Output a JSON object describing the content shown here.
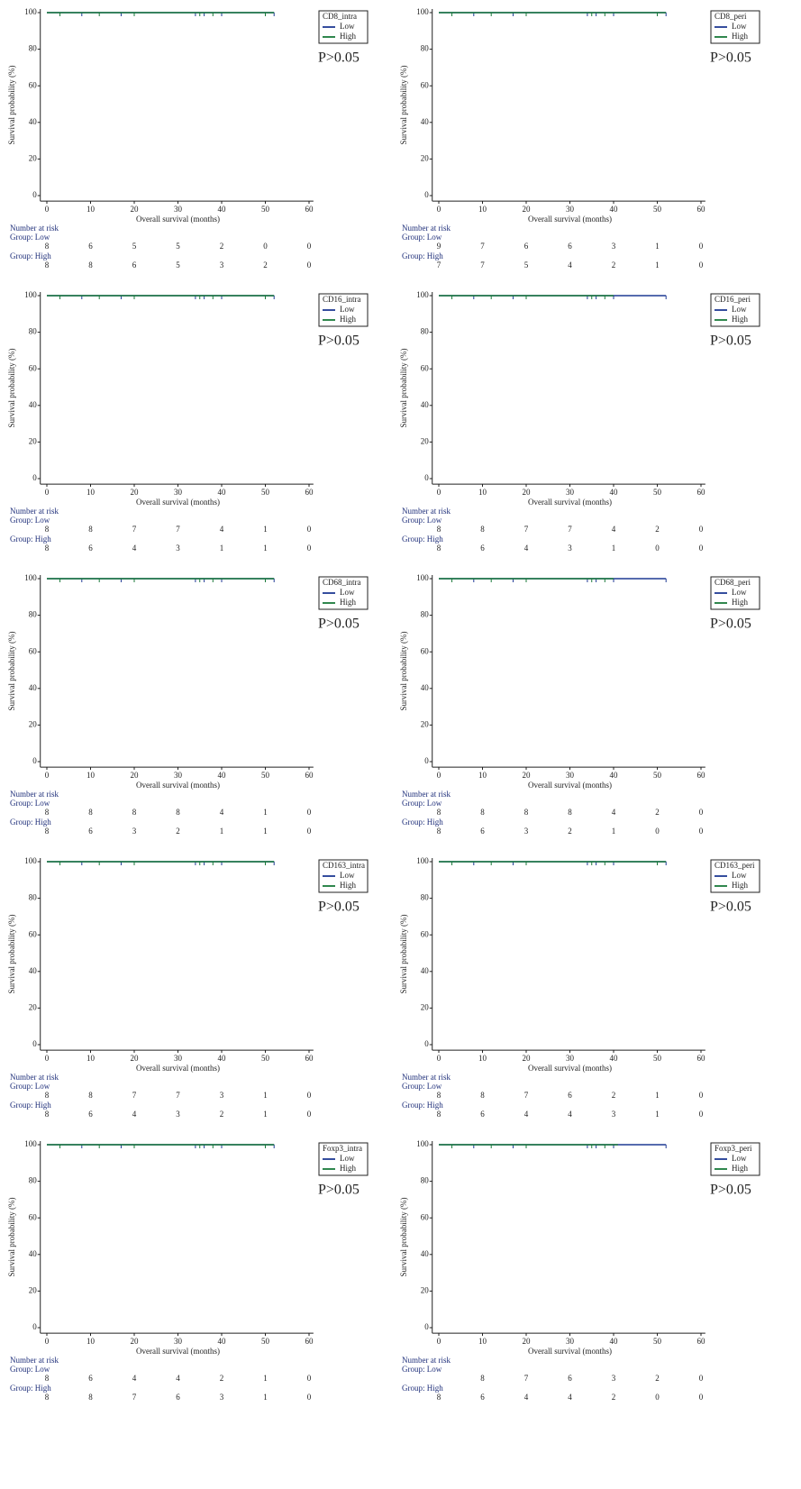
{
  "chart_data": [
    {
      "type": "km",
      "title": "CD8_intra",
      "p_text": "P>0.05",
      "x_label": "Overall survival (months)",
      "y_label": "Survival probability (%)",
      "xlim": [
        -1.5,
        61
      ],
      "ylim": [
        -3,
        102
      ],
      "xticks": [
        0,
        10,
        20,
        30,
        40,
        50,
        60
      ],
      "yticks": [
        0,
        20,
        40,
        60,
        80,
        100
      ],
      "series": [
        {
          "name": "Low",
          "color": "#1f3a93",
          "x": [
            0,
            52
          ],
          "values": [
            100,
            100
          ],
          "censored": [
            8,
            17,
            34,
            36,
            40,
            52
          ]
        },
        {
          "name": "High",
          "color": "#1a7a3a",
          "x": [
            0,
            52
          ],
          "values": [
            100,
            100
          ],
          "censored": [
            3,
            12,
            20,
            35,
            38,
            50
          ]
        }
      ],
      "risk_table": {
        "title": "Number at risk",
        "groups": [
          {
            "label": "Group: Low",
            "counts": [
              8,
              6,
              5,
              5,
              2,
              0,
              0
            ]
          },
          {
            "label": "Group: High",
            "counts": [
              8,
              8,
              6,
              5,
              3,
              2,
              0
            ]
          }
        ]
      }
    },
    {
      "type": "km",
      "title": "CD8_peri",
      "p_text": "P>0.05",
      "x_label": "Overall survival (months)",
      "y_label": "Survival probability (%)",
      "xlim": [
        -1.5,
        61
      ],
      "ylim": [
        -3,
        102
      ],
      "xticks": [
        0,
        10,
        20,
        30,
        40,
        50,
        60
      ],
      "yticks": [
        0,
        20,
        40,
        60,
        80,
        100
      ],
      "series": [
        {
          "name": "Low",
          "color": "#1f3a93",
          "x": [
            0,
            52
          ],
          "values": [
            100,
            100
          ],
          "censored": [
            8,
            17,
            34,
            36,
            40,
            52
          ]
        },
        {
          "name": "High",
          "color": "#1a7a3a",
          "x": [
            0,
            52
          ],
          "values": [
            100,
            100
          ],
          "censored": [
            3,
            12,
            20,
            35,
            38,
            50
          ]
        }
      ],
      "risk_table": {
        "title": "Number at risk",
        "groups": [
          {
            "label": "Group: Low",
            "counts": [
              9,
              7,
              6,
              6,
              3,
              1,
              0
            ]
          },
          {
            "label": "Group: High",
            "counts": [
              7,
              7,
              5,
              4,
              2,
              1,
              0
            ]
          }
        ]
      }
    },
    {
      "type": "km",
      "title": "CD16_intra",
      "p_text": "P>0.05",
      "x_label": "Overall survival (months)",
      "y_label": "Survival probability (%)",
      "xlim": [
        -1.5,
        61
      ],
      "ylim": [
        -3,
        102
      ],
      "xticks": [
        0,
        10,
        20,
        30,
        40,
        50,
        60
      ],
      "yticks": [
        0,
        20,
        40,
        60,
        80,
        100
      ],
      "series": [
        {
          "name": "Low",
          "color": "#1f3a93",
          "x": [
            0,
            52
          ],
          "values": [
            100,
            100
          ],
          "censored": [
            8,
            17,
            34,
            36,
            40,
            52
          ]
        },
        {
          "name": "High",
          "color": "#1a7a3a",
          "x": [
            0,
            52
          ],
          "values": [
            100,
            100
          ],
          "censored": [
            3,
            12,
            20,
            35,
            38,
            50
          ]
        }
      ],
      "risk_table": {
        "title": "Number at risk",
        "groups": [
          {
            "label": "Group: Low",
            "counts": [
              8,
              8,
              7,
              7,
              4,
              1,
              0
            ]
          },
          {
            "label": "Group: High",
            "counts": [
              8,
              6,
              4,
              3,
              1,
              1,
              0
            ]
          }
        ]
      }
    },
    {
      "type": "km",
      "title": "CD16_peri",
      "p_text": "P>0.05",
      "x_label": "Overall survival (months)",
      "y_label": "Survival probability (%)",
      "xlim": [
        -1.5,
        61
      ],
      "ylim": [
        -3,
        102
      ],
      "xticks": [
        0,
        10,
        20,
        30,
        40,
        50,
        60
      ],
      "yticks": [
        0,
        20,
        40,
        60,
        80,
        100
      ],
      "series": [
        {
          "name": "Low",
          "color": "#1f3a93",
          "x": [
            0,
            52
          ],
          "values": [
            100,
            100
          ],
          "censored": [
            8,
            17,
            34,
            36,
            40,
            52
          ]
        },
        {
          "name": "High",
          "color": "#1a7a3a",
          "x": [
            0,
            40
          ],
          "values": [
            100,
            100
          ],
          "censored": [
            3,
            12,
            20,
            35,
            38
          ]
        }
      ],
      "risk_table": {
        "title": "Number at risk",
        "groups": [
          {
            "label": "Group: Low",
            "counts": [
              8,
              8,
              7,
              7,
              4,
              2,
              0
            ]
          },
          {
            "label": "Group: High",
            "counts": [
              8,
              6,
              4,
              3,
              1,
              0,
              0
            ]
          }
        ]
      }
    },
    {
      "type": "km",
      "title": "CD68_intra",
      "p_text": "P>0.05",
      "x_label": "Overall survival (months)",
      "y_label": "Survival probability (%)",
      "xlim": [
        -1.5,
        61
      ],
      "ylim": [
        -3,
        102
      ],
      "xticks": [
        0,
        10,
        20,
        30,
        40,
        50,
        60
      ],
      "yticks": [
        0,
        20,
        40,
        60,
        80,
        100
      ],
      "series": [
        {
          "name": "Low",
          "color": "#1f3a93",
          "x": [
            0,
            52
          ],
          "values": [
            100,
            100
          ],
          "censored": [
            8,
            17,
            34,
            36,
            40,
            52
          ]
        },
        {
          "name": "High",
          "color": "#1a7a3a",
          "x": [
            0,
            52
          ],
          "values": [
            100,
            100
          ],
          "censored": [
            3,
            12,
            20,
            35,
            38,
            50
          ]
        }
      ],
      "risk_table": {
        "title": "Number at risk",
        "groups": [
          {
            "label": "Group: Low",
            "counts": [
              8,
              8,
              8,
              8,
              4,
              1,
              0
            ]
          },
          {
            "label": "Group: High",
            "counts": [
              8,
              6,
              3,
              2,
              1,
              1,
              0
            ]
          }
        ]
      }
    },
    {
      "type": "km",
      "title": "CD68_peri",
      "p_text": "P>0.05",
      "x_label": "Overall survival (months)",
      "y_label": "Survival probability (%)",
      "xlim": [
        -1.5,
        61
      ],
      "ylim": [
        -3,
        102
      ],
      "xticks": [
        0,
        10,
        20,
        30,
        40,
        50,
        60
      ],
      "yticks": [
        0,
        20,
        40,
        60,
        80,
        100
      ],
      "series": [
        {
          "name": "Low",
          "color": "#1f3a93",
          "x": [
            0,
            52
          ],
          "values": [
            100,
            100
          ],
          "censored": [
            8,
            17,
            34,
            36,
            40,
            52
          ]
        },
        {
          "name": "High",
          "color": "#1a7a3a",
          "x": [
            0,
            40
          ],
          "values": [
            100,
            100
          ],
          "censored": [
            3,
            12,
            20,
            35,
            38
          ]
        }
      ],
      "risk_table": {
        "title": "Number at risk",
        "groups": [
          {
            "label": "Group: Low",
            "counts": [
              8,
              8,
              8,
              8,
              4,
              2,
              0
            ]
          },
          {
            "label": "Group: High",
            "counts": [
              8,
              6,
              3,
              2,
              1,
              0,
              0
            ]
          }
        ]
      }
    },
    {
      "type": "km",
      "title": "CD163_intra",
      "p_text": "P>0.05",
      "x_label": "Overall survival (months)",
      "y_label": "Survival probability (%)",
      "xlim": [
        -1.5,
        61
      ],
      "ylim": [
        -3,
        102
      ],
      "xticks": [
        0,
        10,
        20,
        30,
        40,
        50,
        60
      ],
      "yticks": [
        0,
        20,
        40,
        60,
        80,
        100
      ],
      "series": [
        {
          "name": "Low",
          "color": "#1f3a93",
          "x": [
            0,
            52
          ],
          "values": [
            100,
            100
          ],
          "censored": [
            8,
            17,
            34,
            36,
            40,
            52
          ]
        },
        {
          "name": "High",
          "color": "#1a7a3a",
          "x": [
            0,
            52
          ],
          "values": [
            100,
            100
          ],
          "censored": [
            3,
            12,
            20,
            35,
            38,
            50
          ]
        }
      ],
      "risk_table": {
        "title": "Number at risk",
        "groups": [
          {
            "label": "Group: Low",
            "counts": [
              8,
              8,
              7,
              7,
              3,
              1,
              0
            ]
          },
          {
            "label": "Group: High",
            "counts": [
              8,
              6,
              4,
              3,
              2,
              1,
              0
            ]
          }
        ]
      }
    },
    {
      "type": "km",
      "title": "CD163_peri",
      "p_text": "P>0.05",
      "x_label": "Overall survival (months)",
      "y_label": "Survival probability (%)",
      "xlim": [
        -1.5,
        61
      ],
      "ylim": [
        -3,
        102
      ],
      "xticks": [
        0,
        10,
        20,
        30,
        40,
        50,
        60
      ],
      "yticks": [
        0,
        20,
        40,
        60,
        80,
        100
      ],
      "series": [
        {
          "name": "Low",
          "color": "#1f3a93",
          "x": [
            0,
            52
          ],
          "values": [
            100,
            100
          ],
          "censored": [
            8,
            17,
            34,
            36,
            40,
            52
          ]
        },
        {
          "name": "High",
          "color": "#1a7a3a",
          "x": [
            0,
            52
          ],
          "values": [
            100,
            100
          ],
          "censored": [
            3,
            12,
            20,
            35,
            38,
            50
          ]
        }
      ],
      "risk_table": {
        "title": "Number at risk",
        "groups": [
          {
            "label": "Group: Low",
            "counts": [
              8,
              8,
              7,
              6,
              2,
              1,
              0
            ]
          },
          {
            "label": "Group: High",
            "counts": [
              8,
              6,
              4,
              4,
              3,
              1,
              0
            ]
          }
        ]
      }
    },
    {
      "type": "km",
      "title": "Foxp3_intra",
      "p_text": "P>0.05",
      "x_label": "Overall survival (months)",
      "y_label": "Survival probability (%)",
      "xlim": [
        -1.5,
        61
      ],
      "ylim": [
        -3,
        102
      ],
      "xticks": [
        0,
        10,
        20,
        30,
        40,
        50,
        60
      ],
      "yticks": [
        0,
        20,
        40,
        60,
        80,
        100
      ],
      "series": [
        {
          "name": "Low",
          "color": "#1f3a93",
          "x": [
            0,
            52
          ],
          "values": [
            100,
            100
          ],
          "censored": [
            8,
            17,
            34,
            36,
            40,
            52
          ]
        },
        {
          "name": "High",
          "color": "#1a7a3a",
          "x": [
            0,
            52
          ],
          "values": [
            100,
            100
          ],
          "censored": [
            3,
            12,
            20,
            35,
            38,
            50
          ]
        }
      ],
      "risk_table": {
        "title": "Number at risk",
        "groups": [
          {
            "label": "Group: Low",
            "counts": [
              8,
              6,
              4,
              4,
              2,
              1,
              0
            ]
          },
          {
            "label": "Group: High",
            "counts": [
              8,
              8,
              7,
              6,
              3,
              1,
              0
            ]
          }
        ]
      }
    },
    {
      "type": "km",
      "title": "Foxp3_peri",
      "p_text": "P>0.05",
      "x_label": "Overall survival (months)",
      "y_label": "Survival probability (%)",
      "xlim": [
        -1.5,
        61
      ],
      "ylim": [
        -3,
        102
      ],
      "xticks": [
        0,
        10,
        20,
        30,
        40,
        50,
        60
      ],
      "yticks": [
        0,
        20,
        40,
        60,
        80,
        100
      ],
      "series": [
        {
          "name": "Low",
          "color": "#1f3a93",
          "x": [
            0,
            52
          ],
          "values": [
            100,
            100
          ],
          "censored": [
            8,
            17,
            34,
            36,
            40,
            52
          ]
        },
        {
          "name": "High",
          "color": "#1a7a3a",
          "x": [
            0,
            41
          ],
          "values": [
            100,
            100
          ],
          "censored": [
            3,
            12,
            20,
            35,
            38
          ]
        }
      ],
      "risk_table": {
        "title": "Number at risk",
        "groups": [
          {
            "label": "Group: Low",
            "counts": [
              null,
              8,
              7,
              6,
              3,
              2,
              0
            ]
          },
          {
            "label": "Group: High",
            "counts": [
              8,
              6,
              4,
              4,
              2,
              0,
              0
            ]
          }
        ]
      }
    }
  ]
}
